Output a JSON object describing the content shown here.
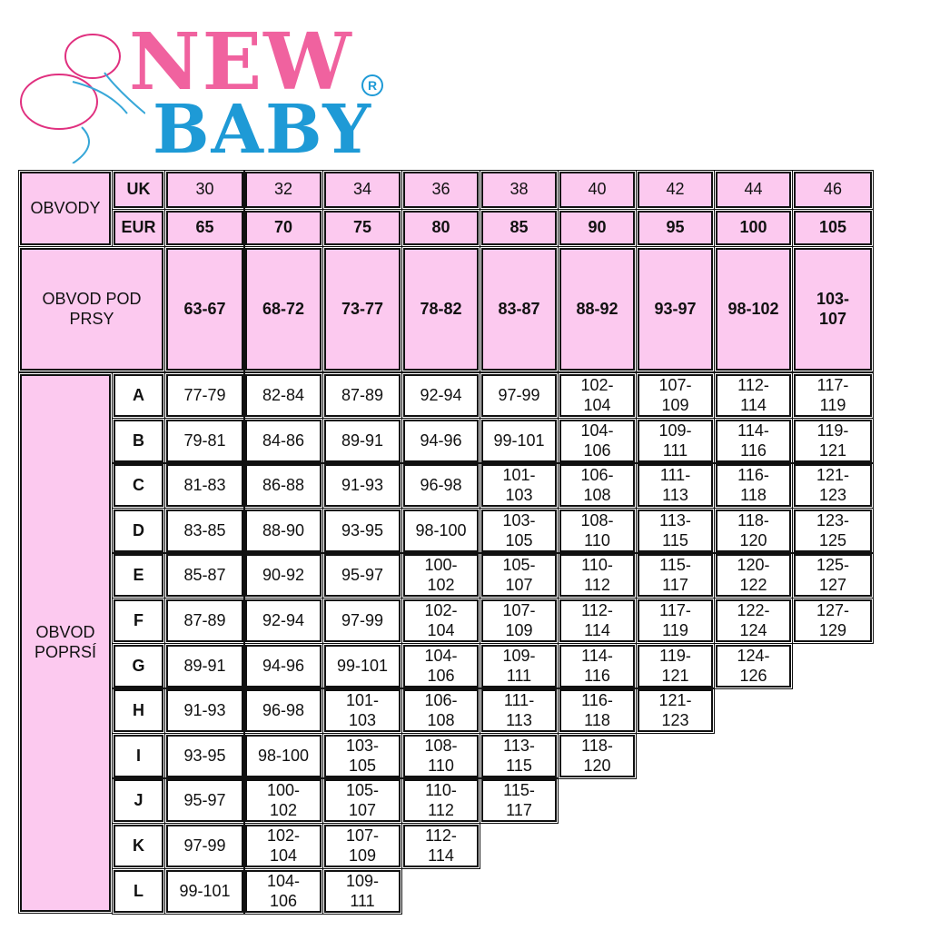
{
  "logo": {
    "line1": "NEW",
    "line2": "BABY",
    "registered": "R",
    "colors": {
      "pink": "#f0629f",
      "blue": "#1e9ad6"
    }
  },
  "colors": {
    "header_bg": "#fcc9ef",
    "cell_bg": "#ffffff",
    "border": "#111111"
  },
  "table": {
    "obvody_label": "OBVODY",
    "uk_label": "UK",
    "eur_label": "EUR",
    "uk": [
      "30",
      "32",
      "34",
      "36",
      "38",
      "40",
      "42",
      "44",
      "46"
    ],
    "eur": [
      "65",
      "70",
      "75",
      "80",
      "85",
      "90",
      "95",
      "100",
      "105"
    ],
    "pod_label": "OBVOD POD PRSY",
    "pod": [
      "63-67",
      "68-72",
      "73-77",
      "78-82",
      "83-87",
      "88-92",
      "93-97",
      "98-102",
      "103-107"
    ],
    "poprsi_label": "OBVOD POPRSÍ",
    "cups": [
      {
        "cup": "A",
        "values": [
          "77-79",
          "82-84",
          "87-89",
          "92-94",
          "97-99",
          "102-104",
          "107-109",
          "112-114",
          "117-119"
        ]
      },
      {
        "cup": "B",
        "values": [
          "79-81",
          "84-86",
          "89-91",
          "94-96",
          "99-101",
          "104-106",
          "109-111",
          "114-116",
          "119-121"
        ]
      },
      {
        "cup": "C",
        "values": [
          "81-83",
          "86-88",
          "91-93",
          "96-98",
          "101-103",
          "106-108",
          "111-113",
          "116-118",
          "121-123"
        ]
      },
      {
        "cup": "D",
        "values": [
          "83-85",
          "88-90",
          "93-95",
          "98-100",
          "103-105",
          "108-110",
          "113-115",
          "118-120",
          "123-125"
        ]
      },
      {
        "cup": "E",
        "values": [
          "85-87",
          "90-92",
          "95-97",
          "100-102",
          "105-107",
          "110-112",
          "115-117",
          "120-122",
          "125-127"
        ]
      },
      {
        "cup": "F",
        "values": [
          "87-89",
          "92-94",
          "97-99",
          "102-104",
          "107-109",
          "112-114",
          "117-119",
          "122-124",
          "127-129"
        ]
      },
      {
        "cup": "G",
        "values": [
          "89-91",
          "94-96",
          "99-101",
          "104-106",
          "109-111",
          "114-116",
          "119-121",
          "124-126"
        ]
      },
      {
        "cup": "H",
        "values": [
          "91-93",
          "96-98",
          "101-103",
          "106-108",
          "111-113",
          "116-118",
          "121-123"
        ]
      },
      {
        "cup": "I",
        "values": [
          "93-95",
          "98-100",
          "103-105",
          "108-110",
          "113-115",
          "118-120"
        ]
      },
      {
        "cup": "J",
        "values": [
          "95-97",
          "100-102",
          "105-107",
          "110-112",
          "115-117"
        ]
      },
      {
        "cup": "K",
        "values": [
          "97-99",
          "102-104",
          "107-109",
          "112-114"
        ]
      },
      {
        "cup": "L",
        "values": [
          "99-101",
          "104-106",
          "109-111"
        ]
      }
    ]
  }
}
